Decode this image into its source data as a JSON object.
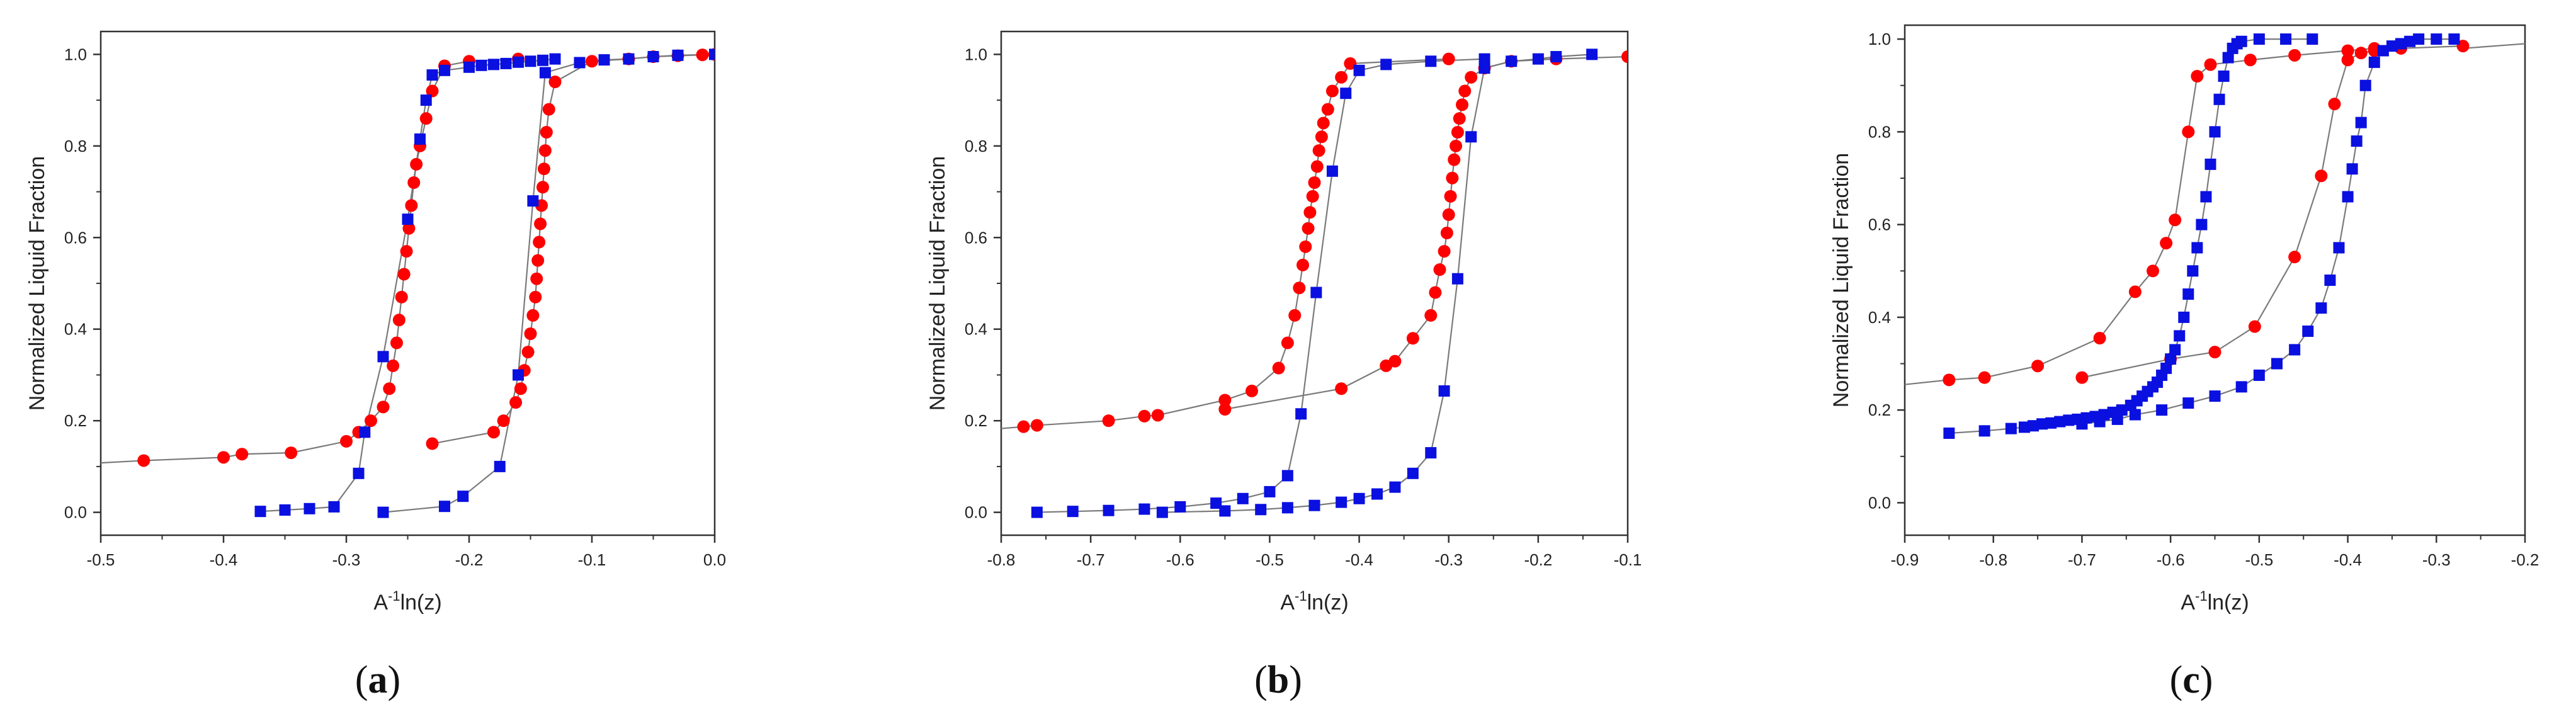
{
  "figure": {
    "panel_label_open": "(",
    "panel_label_close": ")",
    "colors": {
      "red": "#ff0000",
      "blue": "#0a10e0",
      "line": "#7a7a7a",
      "axis": "#333333"
    }
  },
  "chart_data": [
    {
      "id": "a",
      "type": "scatter",
      "panel_label": "a",
      "xlabel_main": "A",
      "xlabel_sup": "-1",
      "xlabel_rest": "ln(z)",
      "ylabel": "Normalized Liquid Fraction",
      "xlim": [
        -0.5,
        0.0
      ],
      "ylim": [
        -0.05,
        1.05
      ],
      "xticks": [
        -0.5,
        -0.4,
        -0.3,
        -0.2,
        -0.1,
        0.0
      ],
      "xtick_labels": [
        "-0.5",
        "-0.4",
        "-0.3",
        "-0.2",
        "-0.1",
        "0.0"
      ],
      "yticks": [
        0,
        0.2,
        0.4,
        0.6,
        0.8,
        1.0
      ],
      "ytick_labels": [
        "0.0",
        "0.2",
        "0.4",
        "0.6",
        "0.8",
        "1.0"
      ],
      "extensions": [
        {
          "x": [
            -0.5,
            -0.465
          ],
          "y": [
            0.108,
            0.113
          ]
        }
      ],
      "series": [
        {
          "name": "red-lower",
          "color": "red",
          "marker": "circle",
          "x": [
            -0.465,
            -0.4,
            -0.385,
            -0.345,
            -0.3,
            -0.29,
            -0.28,
            -0.27,
            -0.265,
            -0.262,
            -0.259,
            -0.257,
            -0.255,
            -0.253,
            -0.251,
            -0.249,
            -0.247,
            -0.245,
            -0.243,
            -0.24,
            -0.235,
            -0.23,
            -0.22,
            -0.2,
            -0.16
          ],
          "y": [
            0.113,
            0.12,
            0.127,
            0.13,
            0.155,
            0.175,
            0.2,
            0.23,
            0.27,
            0.32,
            0.37,
            0.42,
            0.47,
            0.52,
            0.57,
            0.62,
            0.67,
            0.72,
            0.76,
            0.8,
            0.86,
            0.92,
            0.975,
            0.985,
            0.99
          ]
        },
        {
          "name": "red-upper",
          "color": "red",
          "marker": "circle",
          "x": [
            -0.23,
            -0.18,
            -0.172,
            -0.162,
            -0.158,
            -0.155,
            -0.152,
            -0.15,
            -0.148,
            -0.146,
            -0.145,
            -0.144,
            -0.143,
            -0.142,
            -0.141,
            -0.14,
            -0.139,
            -0.138,
            -0.137,
            -0.135,
            -0.13,
            -0.1,
            -0.07,
            -0.05,
            -0.03,
            -0.01,
            0.0
          ],
          "y": [
            0.15,
            0.175,
            0.2,
            0.24,
            0.27,
            0.31,
            0.35,
            0.39,
            0.43,
            0.47,
            0.51,
            0.55,
            0.59,
            0.63,
            0.67,
            0.71,
            0.75,
            0.79,
            0.83,
            0.88,
            0.94,
            0.985,
            0.99,
            0.995,
            0.997,
            0.999,
            1.0
          ]
        },
        {
          "name": "blue-lower",
          "color": "blue",
          "marker": "square",
          "x": [
            -0.37,
            -0.35,
            -0.33,
            -0.31,
            -0.29,
            -0.285,
            -0.27,
            -0.25,
            -0.24,
            -0.235,
            -0.23,
            -0.22,
            -0.2,
            -0.19,
            -0.18,
            -0.17,
            -0.16,
            -0.15,
            -0.14,
            -0.13
          ],
          "y": [
            0.002,
            0.005,
            0.008,
            0.012,
            0.085,
            0.175,
            0.34,
            0.64,
            0.815,
            0.9,
            0.955,
            0.965,
            0.972,
            0.976,
            0.978,
            0.98,
            0.983,
            0.985,
            0.987,
            0.99
          ]
        },
        {
          "name": "blue-upper",
          "color": "blue",
          "marker": "square",
          "x": [
            -0.27,
            -0.22,
            -0.205,
            -0.175,
            -0.16,
            -0.148,
            -0.138,
            -0.11,
            -0.09,
            -0.07,
            -0.05,
            -0.03,
            0.0
          ],
          "y": [
            0.0,
            0.013,
            0.035,
            0.1,
            0.3,
            0.68,
            0.96,
            0.982,
            0.988,
            0.99,
            0.995,
            0.998,
            1.0
          ]
        }
      ]
    },
    {
      "id": "b",
      "type": "scatter",
      "panel_label": "b",
      "xlabel_main": "A",
      "xlabel_sup": "-1",
      "xlabel_rest": "ln(z)",
      "ylabel": "Normalized Liquid Fraction",
      "xlim": [
        -0.8,
        -0.1
      ],
      "ylim": [
        -0.05,
        1.05
      ],
      "xticks": [
        -0.8,
        -0.7,
        -0.6,
        -0.5,
        -0.4,
        -0.3,
        -0.2,
        -0.1
      ],
      "xtick_labels": [
        "-0.8",
        "-0.7",
        "-0.6",
        "-0.5",
        "-0.4",
        "-0.3",
        "-0.2",
        "-0.1"
      ],
      "yticks": [
        0,
        0.2,
        0.4,
        0.6,
        0.8,
        1.0
      ],
      "ytick_labels": [
        "0.0",
        "0.2",
        "0.4",
        "0.6",
        "0.8",
        "1.0"
      ],
      "extensions": [
        {
          "x": [
            -0.8,
            -0.775
          ],
          "y": [
            0.183,
            0.187
          ]
        }
      ],
      "series": [
        {
          "name": "red-lower",
          "color": "red",
          "marker": "circle",
          "x": [
            -0.775,
            -0.76,
            -0.68,
            -0.64,
            -0.625,
            -0.55,
            -0.52,
            -0.49,
            -0.48,
            -0.472,
            -0.467,
            -0.463,
            -0.46,
            -0.457,
            -0.455,
            -0.452,
            -0.45,
            -0.447,
            -0.445,
            -0.442,
            -0.44,
            -0.435,
            -0.43,
            -0.42,
            -0.41,
            -0.3
          ],
          "y": [
            0.187,
            0.19,
            0.2,
            0.21,
            0.212,
            0.245,
            0.265,
            0.315,
            0.37,
            0.43,
            0.49,
            0.54,
            0.58,
            0.62,
            0.655,
            0.69,
            0.72,
            0.755,
            0.79,
            0.82,
            0.85,
            0.88,
            0.92,
            0.95,
            0.98,
            0.99
          ]
        },
        {
          "name": "red-upper",
          "color": "red",
          "marker": "circle",
          "x": [
            -0.55,
            -0.42,
            -0.37,
            -0.36,
            -0.34,
            -0.32,
            -0.315,
            -0.31,
            -0.305,
            -0.302,
            -0.3,
            -0.298,
            -0.296,
            -0.294,
            -0.292,
            -0.29,
            -0.288,
            -0.285,
            -0.282,
            -0.275,
            -0.26,
            -0.23,
            -0.18,
            -0.1
          ],
          "y": [
            0.225,
            0.27,
            0.32,
            0.33,
            0.38,
            0.43,
            0.48,
            0.53,
            0.57,
            0.61,
            0.65,
            0.69,
            0.73,
            0.77,
            0.8,
            0.83,
            0.86,
            0.89,
            0.92,
            0.95,
            0.97,
            0.985,
            0.99,
            0.995
          ]
        },
        {
          "name": "blue-lower",
          "color": "blue",
          "marker": "square",
          "x": [
            -0.76,
            -0.72,
            -0.68,
            -0.64,
            -0.6,
            -0.56,
            -0.53,
            -0.5,
            -0.48,
            -0.465,
            -0.448,
            -0.43,
            -0.415,
            -0.4,
            -0.37,
            -0.32,
            -0.26
          ],
          "y": [
            0.0,
            0.002,
            0.004,
            0.007,
            0.012,
            0.02,
            0.03,
            0.045,
            0.08,
            0.215,
            0.48,
            0.745,
            0.915,
            0.965,
            0.978,
            0.985,
            0.99
          ]
        },
        {
          "name": "blue-upper",
          "color": "blue",
          "marker": "square",
          "x": [
            -0.62,
            -0.55,
            -0.51,
            -0.48,
            -0.45,
            -0.42,
            -0.4,
            -0.38,
            -0.36,
            -0.34,
            -0.32,
            -0.305,
            -0.29,
            -0.275,
            -0.26,
            -0.23,
            -0.2,
            -0.18,
            -0.14
          ],
          "y": [
            0.0,
            0.003,
            0.006,
            0.01,
            0.015,
            0.022,
            0.03,
            0.04,
            0.055,
            0.085,
            0.13,
            0.265,
            0.51,
            0.82,
            0.97,
            0.985,
            0.99,
            0.995,
            1.0
          ]
        }
      ]
    },
    {
      "id": "c",
      "type": "scatter",
      "panel_label": "c",
      "xlabel_main": "A",
      "xlabel_sup": "-1",
      "xlabel_rest": "ln(z)",
      "ylabel": "Normalized Liquid Fraction",
      "xlim": [
        -0.9,
        -0.2
      ],
      "ylim": [
        -0.07,
        1.03
      ],
      "xticks": [
        -0.9,
        -0.8,
        -0.7,
        -0.6,
        -0.5,
        -0.4,
        -0.3,
        -0.2
      ],
      "xtick_labels": [
        "-0.9",
        "-0.8",
        "-0.7",
        "-0.6",
        "-0.5",
        "-0.4",
        "-0.3",
        "-0.2"
      ],
      "yticks": [
        0,
        0.2,
        0.4,
        0.6,
        0.8,
        1.0
      ],
      "ytick_labels": [
        "0.0",
        "0.2",
        "0.4",
        "0.6",
        "0.8",
        "1.0"
      ],
      "extensions": [
        {
          "x": [
            -0.9,
            -0.85
          ],
          "y": [
            0.255,
            0.265
          ]
        },
        {
          "x": [
            -0.27,
            -0.2
          ],
          "y": [
            0.98,
            0.99
          ]
        }
      ],
      "series": [
        {
          "name": "red-lower",
          "color": "red",
          "marker": "circle",
          "x": [
            -0.85,
            -0.81,
            -0.75,
            -0.68,
            -0.64,
            -0.62,
            -0.605,
            -0.595,
            -0.58,
            -0.57,
            -0.555,
            -0.51,
            -0.46,
            -0.4,
            -0.37
          ],
          "y": [
            0.265,
            0.27,
            0.295,
            0.355,
            0.455,
            0.5,
            0.56,
            0.61,
            0.8,
            0.92,
            0.945,
            0.955,
            0.965,
            0.975,
            0.98
          ]
        },
        {
          "name": "red-upper",
          "color": "red",
          "marker": "circle",
          "x": [
            -0.7,
            -0.6,
            -0.55,
            -0.505,
            -0.46,
            -0.43,
            -0.415,
            -0.4,
            -0.385,
            -0.37,
            -0.34,
            -0.27
          ],
          "y": [
            0.27,
            0.31,
            0.325,
            0.38,
            0.53,
            0.705,
            0.86,
            0.955,
            0.97,
            0.975,
            0.98,
            0.985
          ]
        },
        {
          "name": "blue-lower",
          "color": "blue",
          "marker": "square",
          "x": [
            -0.85,
            -0.81,
            -0.78,
            -0.765,
            -0.755,
            -0.745,
            -0.735,
            -0.725,
            -0.715,
            -0.705,
            -0.695,
            -0.685,
            -0.675,
            -0.665,
            -0.655,
            -0.645,
            -0.638,
            -0.632,
            -0.626,
            -0.62,
            -0.615,
            -0.61,
            -0.605,
            -0.6,
            -0.595,
            -0.59,
            -0.585,
            -0.58,
            -0.575,
            -0.57,
            -0.565,
            -0.56,
            -0.555,
            -0.55,
            -0.545,
            -0.54,
            -0.535,
            -0.53,
            -0.525,
            -0.52,
            -0.5,
            -0.47,
            -0.44
          ],
          "y": [
            0.15,
            0.155,
            0.16,
            0.163,
            0.166,
            0.17,
            0.172,
            0.175,
            0.178,
            0.18,
            0.183,
            0.186,
            0.19,
            0.195,
            0.2,
            0.21,
            0.22,
            0.23,
            0.24,
            0.25,
            0.26,
            0.275,
            0.29,
            0.31,
            0.33,
            0.36,
            0.4,
            0.45,
            0.5,
            0.55,
            0.6,
            0.66,
            0.73,
            0.8,
            0.87,
            0.92,
            0.96,
            0.98,
            0.99,
            0.995,
            1.0,
            1.0,
            1.0
          ]
        },
        {
          "name": "blue-upper",
          "color": "blue",
          "marker": "square",
          "x": [
            -0.7,
            -0.68,
            -0.66,
            -0.64,
            -0.61,
            -0.58,
            -0.55,
            -0.52,
            -0.5,
            -0.48,
            -0.46,
            -0.445,
            -0.43,
            -0.42,
            -0.41,
            -0.4,
            -0.395,
            -0.39,
            -0.385,
            -0.38,
            -0.37,
            -0.36,
            -0.35,
            -0.34,
            -0.33,
            -0.32,
            -0.3,
            -0.28
          ],
          "y": [
            0.17,
            0.175,
            0.18,
            0.19,
            0.2,
            0.215,
            0.23,
            0.25,
            0.275,
            0.3,
            0.33,
            0.37,
            0.42,
            0.48,
            0.55,
            0.66,
            0.72,
            0.78,
            0.82,
            0.9,
            0.95,
            0.975,
            0.985,
            0.99,
            0.995,
            1.0,
            1.0,
            1.0
          ]
        }
      ]
    }
  ]
}
